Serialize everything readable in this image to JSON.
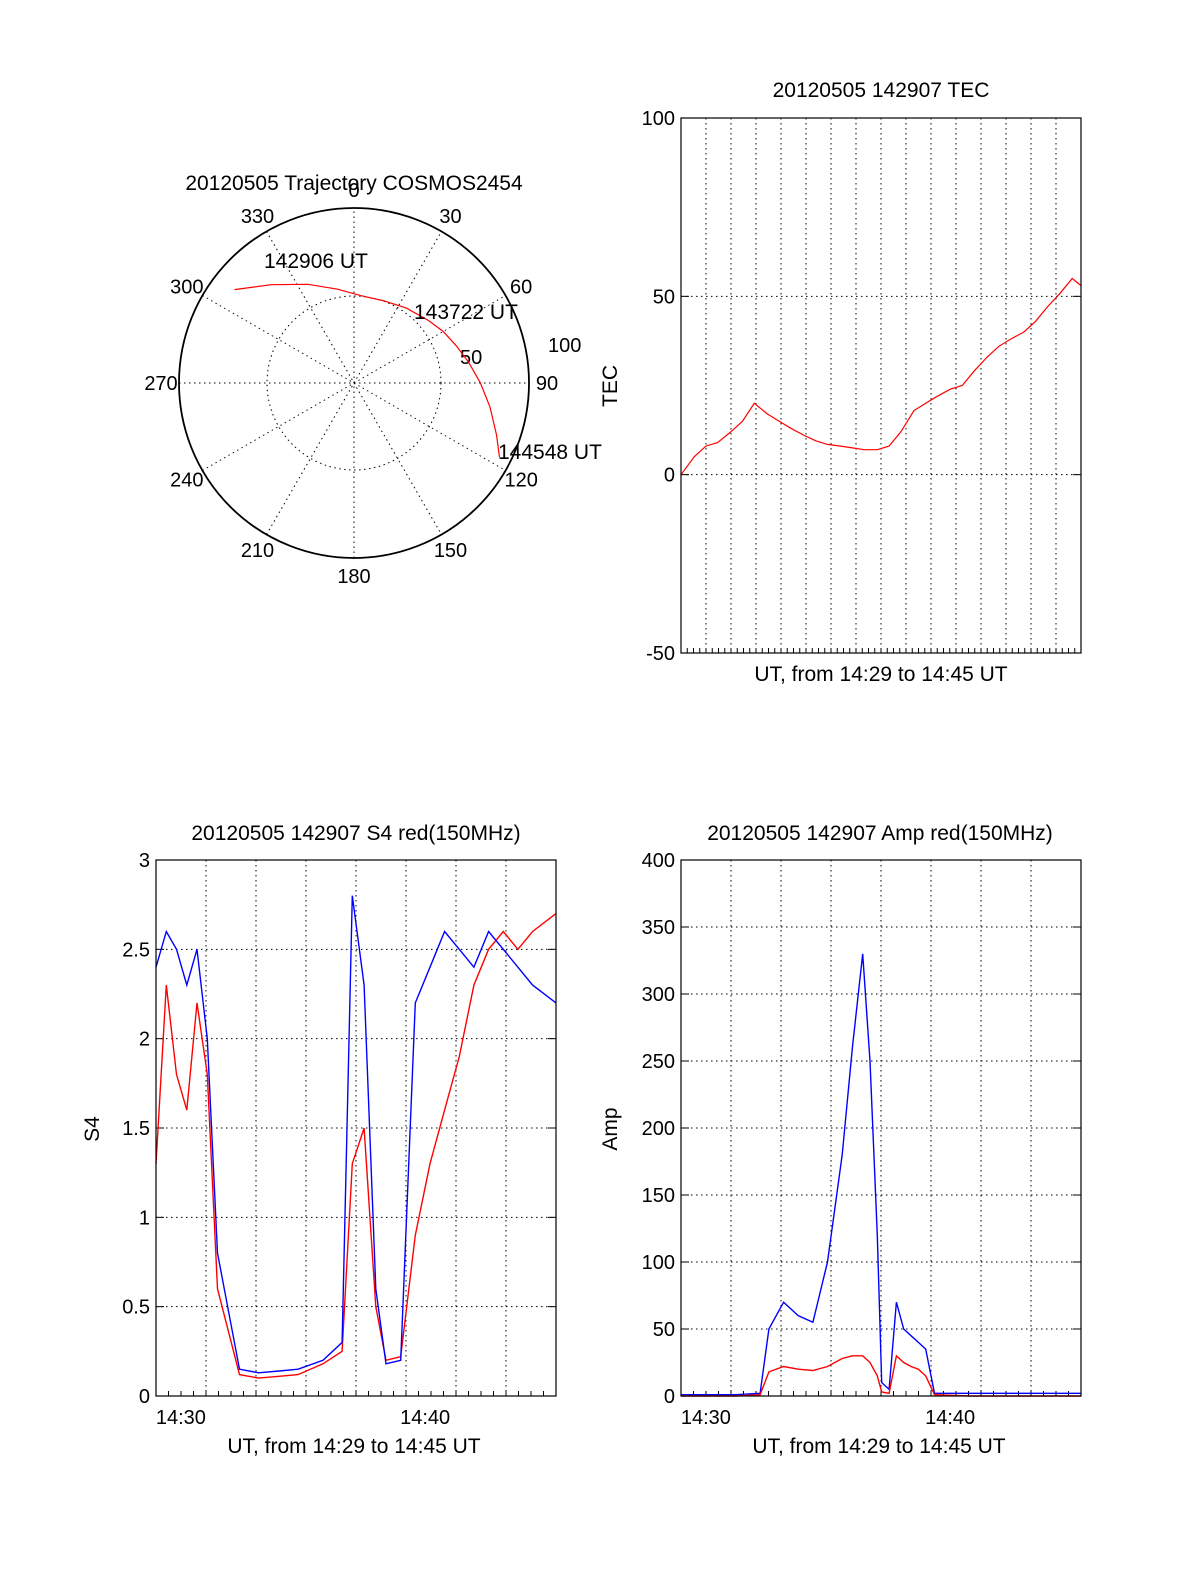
{
  "chart_data": [
    {
      "id": "polar",
      "type": "scatter",
      "title": "20120505 Trajectory COSMOS2454",
      "angle_labels": [
        "0",
        "30",
        "60",
        "90",
        "120",
        "150",
        "180",
        "210",
        "240",
        "270",
        "300",
        "330"
      ],
      "radius_labels": [
        "50",
        "100"
      ],
      "point_labels": [
        "142906 UT",
        "143722 UT",
        "144548 UT"
      ],
      "trajectory": {
        "azimuth_deg": [
          308,
          320,
          335,
          350,
          5,
          20,
          35,
          50,
          60,
          70,
          80,
          90,
          100,
          110,
          117
        ],
        "zenith": [
          78,
          66,
          56,
          49,
          45,
          45,
          47,
          50,
          53,
          56,
          60,
          65,
          71,
          78,
          84
        ],
        "color": "#ff0000"
      }
    },
    {
      "id": "tec",
      "type": "line",
      "title": "20120505 142907 TEC",
      "xlabel": "UT, from 14:29 to 14:45 UT",
      "ylabel": "TEC",
      "ylim": [
        -50,
        100
      ],
      "yticks": [
        "-50",
        "0",
        "50",
        "100"
      ],
      "xlim": [
        14.483,
        14.756
      ],
      "series": [
        {
          "color": "#ff0000",
          "x": [
            14.483,
            14.492,
            14.5,
            14.508,
            14.517,
            14.525,
            14.533,
            14.542,
            14.55,
            14.558,
            14.567,
            14.575,
            14.583,
            14.592,
            14.6,
            14.608,
            14.617,
            14.625,
            14.633,
            14.642,
            14.65,
            14.658,
            14.667,
            14.675,
            14.683,
            14.692,
            14.7,
            14.708,
            14.717,
            14.725,
            14.733,
            14.742,
            14.75,
            14.756
          ],
          "y": [
            0,
            5,
            8,
            9,
            12,
            15,
            20,
            17,
            15,
            13,
            11,
            9.5,
            8.5,
            8,
            7.5,
            7,
            7,
            8,
            12,
            18,
            20,
            22,
            24,
            25,
            29,
            33,
            36,
            38,
            40,
            43,
            47,
            51,
            55,
            53
          ]
        }
      ]
    },
    {
      "id": "s4",
      "type": "line",
      "title": "20120505 142907 S4 red(150MHz)",
      "xlabel": "UT, from 14:29 to 14:45 UT",
      "ylabel": "S4",
      "ylim": [
        0,
        3
      ],
      "yticks": [
        "0",
        "0.5",
        "1",
        "1.5",
        "2",
        "2.5",
        "3"
      ],
      "xticks": [
        "14:30",
        "14:40"
      ],
      "xlim": [
        14.483,
        14.756
      ],
      "series": [
        {
          "color": "#ff0000",
          "x": [
            14.483,
            14.49,
            14.497,
            14.504,
            14.511,
            14.518,
            14.525,
            14.54,
            14.553,
            14.567,
            14.58,
            14.597,
            14.61,
            14.617,
            14.625,
            14.633,
            14.64,
            14.65,
            14.66,
            14.67,
            14.68,
            14.69,
            14.7,
            14.71,
            14.72,
            14.73,
            14.74,
            14.756
          ],
          "y": [
            1.3,
            2.3,
            1.8,
            1.6,
            2.2,
            1.8,
            0.6,
            0.12,
            0.1,
            0.11,
            0.12,
            0.18,
            0.25,
            1.3,
            1.5,
            0.5,
            0.2,
            0.22,
            0.9,
            1.3,
            1.6,
            1.9,
            2.3,
            2.5,
            2.6,
            2.5,
            2.6,
            2.7
          ]
        },
        {
          "color": "#0000ff",
          "x": [
            14.483,
            14.49,
            14.497,
            14.504,
            14.511,
            14.518,
            14.525,
            14.54,
            14.553,
            14.567,
            14.58,
            14.597,
            14.61,
            14.617,
            14.625,
            14.633,
            14.64,
            14.65,
            14.66,
            14.67,
            14.68,
            14.69,
            14.7,
            14.71,
            14.72,
            14.73,
            14.74,
            14.756
          ],
          "y": [
            2.4,
            2.6,
            2.5,
            2.3,
            2.5,
            2.0,
            0.8,
            0.15,
            0.13,
            0.14,
            0.15,
            0.2,
            0.3,
            2.8,
            2.3,
            0.6,
            0.18,
            0.2,
            2.2,
            2.4,
            2.6,
            2.5,
            2.4,
            2.6,
            2.5,
            2.4,
            2.3,
            2.2
          ]
        }
      ]
    },
    {
      "id": "amp",
      "type": "line",
      "title": "20120505 142907 Amp red(150MHz)",
      "xlabel": "UT, from 14:29 to 14:45 UT",
      "ylabel": "Amp",
      "ylim": [
        0,
        400
      ],
      "yticks": [
        "0",
        "50",
        "100",
        "150",
        "200",
        "250",
        "300",
        "350",
        "400"
      ],
      "xticks": [
        "14:30",
        "14:40"
      ],
      "xlim": [
        14.483,
        14.756
      ],
      "series": [
        {
          "color": "#0000ff",
          "x": [
            14.483,
            14.5,
            14.52,
            14.537,
            14.543,
            14.553,
            14.563,
            14.573,
            14.583,
            14.593,
            14.6,
            14.607,
            14.612,
            14.617,
            14.62,
            14.625,
            14.63,
            14.635,
            14.64,
            14.645,
            14.65,
            14.656,
            14.68,
            14.72,
            14.756
          ],
          "y": [
            1,
            1,
            1,
            2,
            50,
            70,
            60,
            55,
            100,
            180,
            260,
            330,
            250,
            120,
            10,
            5,
            70,
            50,
            45,
            40,
            35,
            2,
            2,
            2,
            2
          ]
        },
        {
          "color": "#ff0000",
          "x": [
            14.483,
            14.5,
            14.52,
            14.537,
            14.543,
            14.553,
            14.563,
            14.573,
            14.583,
            14.593,
            14.6,
            14.607,
            14.612,
            14.617,
            14.62,
            14.625,
            14.63,
            14.635,
            14.64,
            14.645,
            14.65,
            14.656,
            14.68,
            14.72,
            14.756
          ],
          "y": [
            0,
            0,
            0,
            1,
            18,
            22,
            20,
            19,
            22,
            28,
            30,
            30,
            25,
            15,
            3,
            2,
            30,
            25,
            22,
            20,
            15,
            1,
            0,
            0,
            0
          ]
        }
      ]
    }
  ]
}
